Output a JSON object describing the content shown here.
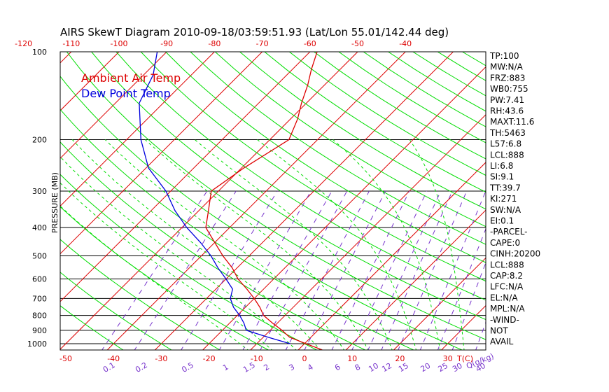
{
  "chart_data": {
    "type": "line",
    "title": "AIRS SkewT Diagram 2010-09-18/03:59:51.93 (Lat/Lon 55.01/142.44 deg)",
    "ylabel": "PRESSURE (MB)",
    "xlabel_bottom": "T(C)",
    "mixing_ratio_label": "Q(g/kg)",
    "pressure_ticks": [
      "100",
      "200",
      "300",
      "400",
      "500",
      "600",
      "700",
      "800",
      "900",
      "1000"
    ],
    "temp_ticks_bottom": [
      "-50",
      "-40",
      "-30",
      "-20",
      "-10",
      "0",
      "10",
      "20",
      "30"
    ],
    "temp_ticks_top": [
      "-120",
      "-110",
      "-100",
      "-90",
      "-80",
      "-70",
      "-60",
      "-50",
      "-40"
    ],
    "mixing_ratio_ticks": [
      "0.1",
      "0.2",
      "0.5",
      "1",
      "1.5",
      "2",
      "3",
      "4",
      "6",
      "8",
      "10",
      "12",
      "15",
      "20",
      "25",
      "30",
      "40"
    ],
    "ylim": [
      1000,
      100
    ],
    "legend": [
      {
        "name": "Ambient Air Temp",
        "color": "#dd0000"
      },
      {
        "name": "Dew Point Temp",
        "color": "#0000dd"
      }
    ],
    "series": [
      {
        "name": "Ambient Air Temp",
        "color": "#dd0000",
        "points": [
          {
            "p": 1050,
            "t": 5.0
          },
          {
            "p": 1000,
            "t": 0.3
          },
          {
            "p": 950,
            "t": -4.5
          },
          {
            "p": 900,
            "t": -7.5
          },
          {
            "p": 850,
            "t": -11.0
          },
          {
            "p": 800,
            "t": -14.5
          },
          {
            "p": 750,
            "t": -17.0
          },
          {
            "p": 700,
            "t": -20.0
          },
          {
            "p": 650,
            "t": -23.5
          },
          {
            "p": 600,
            "t": -27.5
          },
          {
            "p": 550,
            "t": -31.0
          },
          {
            "p": 500,
            "t": -35.5
          },
          {
            "p": 450,
            "t": -40.0
          },
          {
            "p": 400,
            "t": -45.0
          },
          {
            "p": 350,
            "t": -48.0
          },
          {
            "p": 300,
            "t": -51.5
          },
          {
            "p": 250,
            "t": -49.5
          },
          {
            "p": 200,
            "t": -46.0
          },
          {
            "p": 170,
            "t": -48.5
          },
          {
            "p": 150,
            "t": -51.0
          },
          {
            "p": 130,
            "t": -53.5
          },
          {
            "p": 115,
            "t": -56.0
          },
          {
            "p": 100,
            "t": -58.5
          }
        ]
      },
      {
        "name": "Dew Point Temp",
        "color": "#0000dd",
        "points": [
          {
            "p": 1000,
            "t": -3.0
          },
          {
            "p": 950,
            "t": -9.0
          },
          {
            "p": 900,
            "t": -15.0
          },
          {
            "p": 850,
            "t": -17.0
          },
          {
            "p": 800,
            "t": -19.5
          },
          {
            "p": 750,
            "t": -22.5
          },
          {
            "p": 700,
            "t": -25.0
          },
          {
            "p": 650,
            "t": -26.5
          },
          {
            "p": 600,
            "t": -30.0
          },
          {
            "p": 550,
            "t": -34.0
          },
          {
            "p": 500,
            "t": -38.0
          },
          {
            "p": 450,
            "t": -43.0
          },
          {
            "p": 400,
            "t": -49.0
          },
          {
            "p": 350,
            "t": -55.0
          },
          {
            "p": 300,
            "t": -61.0
          },
          {
            "p": 250,
            "t": -69.5
          },
          {
            "p": 200,
            "t": -77.0
          },
          {
            "p": 150,
            "t": -85.0
          },
          {
            "p": 120,
            "t": -88.0
          },
          {
            "p": 100,
            "t": -92.0
          }
        ]
      }
    ]
  },
  "indices": [
    "TP:100",
    "MW:N/A",
    "FRZ:883",
    "WB0:755",
    "PW:7.41",
    "RH:43.6",
    "MAXT:11.6",
    "TH:5463",
    "L57:6.8",
    "LCL:888",
    "LI:6.8",
    "SI:9.1",
    "TT:39.7",
    "KI:271",
    "SW:N/A",
    "EI:0.1",
    "-PARCEL-",
    "CAPE:0",
    "CINH:20200",
    "LCL:888",
    "CAP:8.2",
    "LFC:N/A",
    "EL:N/A",
    "MPL:N/A",
    "-WIND-",
    "NOT",
    "AVAIL"
  ],
  "colors": {
    "isotherm": "#dd0000",
    "dry_adiabat": "#00dd00",
    "moist_adiabat": "#00dd00",
    "mixing_ratio": "#7733cc",
    "axis": "#000000",
    "temp_label": "#dd0000",
    "mixing_label": "#7733cc"
  }
}
